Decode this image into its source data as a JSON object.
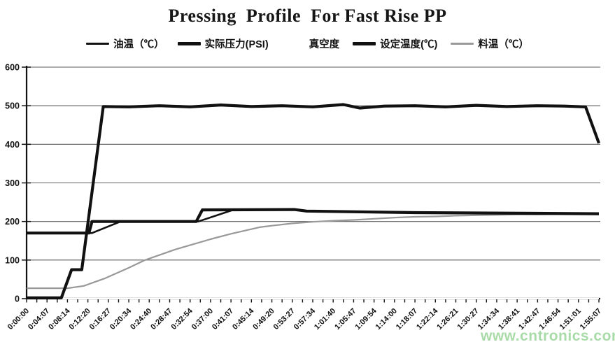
{
  "page": {
    "title": "Pressing  Profile  For Fast Rise PP",
    "watermark": "www.cntronics.com",
    "watermark_color": "#9fd89f"
  },
  "chart_data": {
    "type": "line",
    "title": "Pressing  Profile  For Fast Rise PP",
    "legend_position": "top",
    "grid": true,
    "y_axis": {
      "min": 0,
      "max": 600,
      "step": 100,
      "tick_labels": [
        "0",
        "100",
        "200",
        "300",
        "400",
        "500",
        "600"
      ]
    },
    "x_axis": {
      "t_unit": "index of x tick label (0 = first label, 28 = last label)",
      "minor_ticks_per_label_interval": 2,
      "tick_labels": [
        "0:00:00",
        "0:04:07",
        "0:08:14",
        "0:12:20",
        "0:16:27",
        "0:20:34",
        "0:24:40",
        "0:28:47",
        "0:32:54",
        "0:37:00",
        "0:41:07",
        "0:45:14",
        "0:49:20",
        "0:53:27",
        "0:57:34",
        "1:01:40",
        "1:05:47",
        "1:09:54",
        "1:14:00",
        "1:18:07",
        "1:22:14",
        "1:26:21",
        "1:30:27",
        "1:34:34",
        "1:38:41",
        "1:42:47",
        "1:46:54",
        "1:51:01",
        "1:55:07"
      ]
    },
    "series": [
      {
        "key": "oil-temp",
        "name": "油温（℃）",
        "color": "#111111",
        "stroke_width": 2.6,
        "z": 3,
        "points": [
          [
            0,
            170
          ],
          [
            3.2,
            170
          ],
          [
            4.6,
            200
          ],
          [
            8.4,
            200
          ],
          [
            10.1,
            230
          ],
          [
            13.1,
            231
          ],
          [
            13.7,
            227
          ],
          [
            16,
            225
          ],
          [
            19,
            223
          ],
          [
            23,
            221
          ],
          [
            28,
            220
          ]
        ]
      },
      {
        "key": "actual-pressure",
        "name": "实际压力(PSI)",
        "color": "#111111",
        "stroke_width": 4.2,
        "z": 5,
        "points": [
          [
            0,
            2
          ],
          [
            1.7,
            2
          ],
          [
            2.2,
            75
          ],
          [
            2.7,
            75
          ],
          [
            3.75,
            498
          ],
          [
            5,
            497
          ],
          [
            6.5,
            500
          ],
          [
            8,
            497
          ],
          [
            9.5,
            502
          ],
          [
            11,
            498
          ],
          [
            12.5,
            500
          ],
          [
            14,
            497
          ],
          [
            15.5,
            503
          ],
          [
            16.3,
            494
          ],
          [
            17.5,
            499
          ],
          [
            19,
            500
          ],
          [
            20.5,
            497
          ],
          [
            22,
            501
          ],
          [
            23.5,
            498
          ],
          [
            25,
            500
          ],
          [
            26.3,
            499
          ],
          [
            27.35,
            497
          ],
          [
            28,
            403
          ]
        ]
      },
      {
        "key": "vacuum",
        "name": "真空度",
        "color": "#ffffff",
        "stroke_width": 2,
        "z": 1,
        "points": [
          [
            0,
            0
          ],
          [
            28,
            0
          ]
        ]
      },
      {
        "key": "set-temp",
        "name": "设定温度(℃)",
        "color": "#111111",
        "stroke_width": 4.2,
        "z": 4,
        "points": [
          [
            0,
            170
          ],
          [
            3.05,
            170
          ],
          [
            3.2,
            200
          ],
          [
            8.3,
            200
          ],
          [
            8.6,
            230
          ],
          [
            13.1,
            231
          ],
          [
            13.7,
            227
          ],
          [
            19,
            223
          ],
          [
            28,
            220
          ]
        ]
      },
      {
        "key": "material-temp",
        "name": "料温（℃）",
        "color": "#999999",
        "stroke_width": 2.2,
        "z": 2,
        "points": [
          [
            0,
            27
          ],
          [
            2,
            27
          ],
          [
            2.8,
            33
          ],
          [
            3.85,
            53
          ],
          [
            5,
            80
          ],
          [
            5.8,
            100
          ],
          [
            7.25,
            127
          ],
          [
            9,
            154
          ],
          [
            10,
            168
          ],
          [
            11.4,
            185
          ],
          [
            12,
            189
          ],
          [
            13,
            195
          ],
          [
            14,
            199
          ],
          [
            15,
            202
          ],
          [
            16,
            204
          ],
          [
            17,
            207
          ],
          [
            18,
            210
          ],
          [
            19,
            212
          ],
          [
            20,
            213
          ],
          [
            21,
            215
          ],
          [
            22,
            216
          ],
          [
            23,
            217
          ],
          [
            24,
            218
          ],
          [
            25,
            218
          ],
          [
            26,
            219
          ],
          [
            27,
            219
          ],
          [
            28,
            220
          ]
        ]
      }
    ]
  }
}
